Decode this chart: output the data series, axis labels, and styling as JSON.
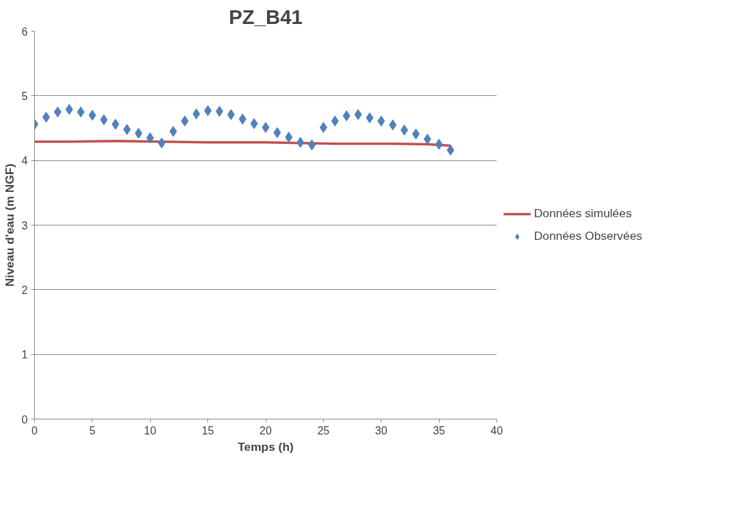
{
  "chart_data": {
    "type": "line",
    "title": "PZ_B41",
    "xlabel": "Temps (h)",
    "ylabel": "Niveau d'eau (m NGF)",
    "xlim": [
      0,
      40
    ],
    "xticks": [
      0,
      5,
      10,
      15,
      20,
      25,
      30,
      35,
      40
    ],
    "ylim": [
      0,
      6
    ],
    "yticks": [
      0,
      1,
      2,
      3,
      4,
      5,
      6
    ],
    "grid": "y",
    "legend": "right",
    "series": [
      {
        "name": "Données simulées",
        "color": "#c0504d",
        "marker": "none",
        "line_style": "solid",
        "x": [
          0,
          3,
          7,
          11,
          15,
          20,
          23,
          26,
          31,
          34,
          36
        ],
        "values": [
          4.29,
          4.29,
          4.3,
          4.29,
          4.28,
          4.28,
          4.27,
          4.26,
          4.26,
          4.25,
          4.23
        ]
      },
      {
        "name": "Données Observées",
        "type": "scatter",
        "color": "#4f81bd",
        "marker": "diamond",
        "x": [
          0,
          1,
          2,
          3,
          4,
          5,
          6,
          7,
          8,
          9,
          10,
          11,
          12,
          13,
          14,
          15,
          16,
          17,
          18,
          19,
          20,
          21,
          22,
          23,
          24,
          25,
          26,
          27,
          28,
          29,
          30,
          31,
          32,
          33,
          34,
          35,
          36
        ],
        "values": [
          4.56,
          4.67,
          4.75,
          4.79,
          4.75,
          4.7,
          4.63,
          4.56,
          4.48,
          4.42,
          4.35,
          4.27,
          4.45,
          4.61,
          4.72,
          4.77,
          4.76,
          4.71,
          4.64,
          4.57,
          4.51,
          4.43,
          4.36,
          4.28,
          4.24,
          4.51,
          4.61,
          4.69,
          4.71,
          4.66,
          4.61,
          4.55,
          4.47,
          4.41,
          4.33,
          4.25,
          4.16
        ]
      }
    ]
  }
}
